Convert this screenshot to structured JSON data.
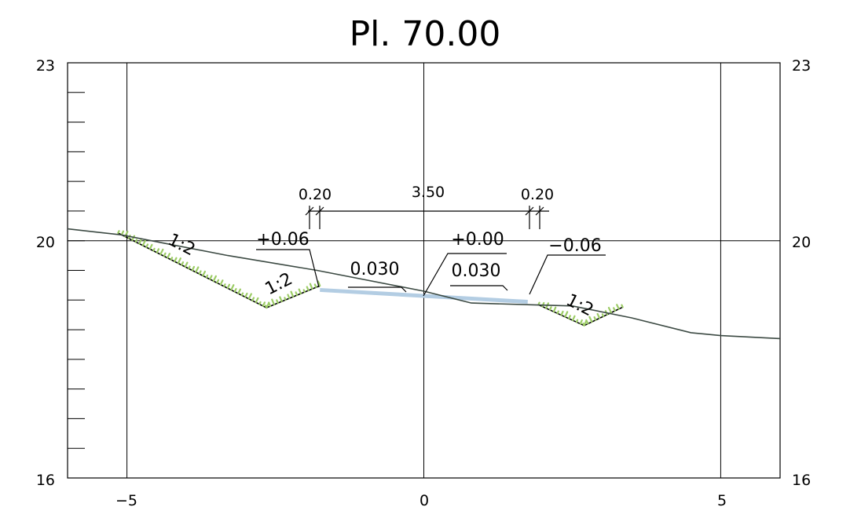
{
  "title": "Pl. 70.00",
  "colors": {
    "ground": "#3c4a43",
    "grass": "#9ccc65",
    "pavement": "#b3cde3",
    "lines": "#000000"
  },
  "axes": {
    "x": {
      "min": -6,
      "max": 6,
      "ticks": [
        -5,
        0,
        5
      ],
      "tick_labels": [
        "−5",
        "0",
        "5"
      ]
    },
    "y": {
      "min": 16,
      "max": 23,
      "major": [
        16,
        20,
        23
      ],
      "major_labels": [
        "16",
        "20",
        "23"
      ],
      "minor_step": 0.5
    }
  },
  "profile": {
    "ground_line": [
      [
        -6.0,
        20.2
      ],
      [
        -5.1,
        20.1
      ],
      [
        -3.3,
        19.75
      ],
      [
        -1.8,
        19.5
      ],
      [
        0.0,
        19.15
      ],
      [
        0.8,
        18.95
      ],
      [
        1.8,
        18.92
      ],
      [
        2.5,
        18.9
      ],
      [
        3.5,
        18.7
      ],
      [
        4.5,
        18.45
      ],
      [
        5.0,
        18.4
      ],
      [
        6.0,
        18.35
      ]
    ],
    "left_slope": [
      [
        -5.15,
        20.13
      ],
      [
        -2.65,
        18.87
      ],
      [
        -1.75,
        19.24
      ]
    ],
    "right_slope": [
      [
        1.93,
        18.92
      ],
      [
        2.7,
        18.57
      ],
      [
        3.35,
        18.88
      ]
    ],
    "pavement": [
      [
        -1.75,
        19.17
      ],
      [
        1.75,
        18.97
      ]
    ]
  },
  "annotations": {
    "dim_left": "0.20",
    "dim_center": "3.50",
    "dim_right": "0.20",
    "elev_left": "+0.06",
    "elev_center": "+0.00",
    "elev_right": "−0.06",
    "slope_left_outer": "1:2",
    "slope_left_inner": "1:2",
    "slope_right": "1:2",
    "grade_left": "0.030",
    "grade_right": "0.030"
  }
}
